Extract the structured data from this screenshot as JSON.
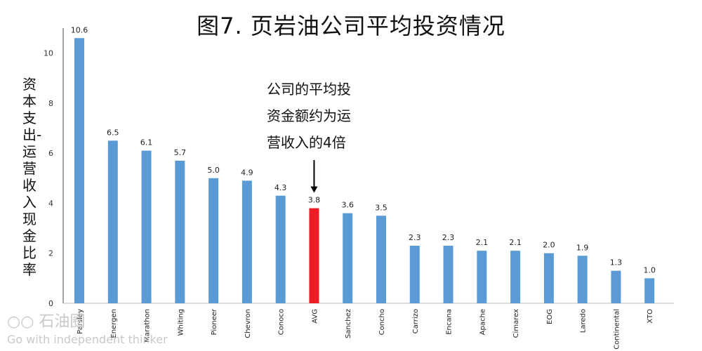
{
  "title": "图7. 页岩油公司平均投资情况",
  "watermark": {
    "logo_text": "石油圈",
    "slogan": "Go with independent thinker"
  },
  "chart_data": {
    "type": "bar",
    "title": "图7. 页岩油公司平均投资情况",
    "xlabel": "",
    "ylabel": "资本支出-运营收入现金比率",
    "ylim": [
      0,
      11
    ],
    "yticks": [
      0,
      2,
      4,
      6,
      8,
      10
    ],
    "categories": [
      "Parsley",
      "Energen",
      "Marathon",
      "Whiting",
      "Pioneer",
      "Chevron",
      "Conoco",
      "AVG",
      "Sanchez",
      "Concho",
      "Carrizo",
      "Encana",
      "Apache",
      "Cimarex",
      "EOG",
      "Laredo",
      "Continental",
      "XTO"
    ],
    "values": [
      10.6,
      6.5,
      6.1,
      5.7,
      5.0,
      4.9,
      4.3,
      3.8,
      3.6,
      3.5,
      2.3,
      2.3,
      2.1,
      2.1,
      2.0,
      1.9,
      1.3,
      1.0
    ],
    "value_labels": [
      "10.6",
      "6.5",
      "6.1",
      "5.7",
      "5.0",
      "4.9",
      "4.3",
      "3.8",
      "3.6",
      "3.5",
      "2.3",
      "2.3",
      "2.1",
      "2.1",
      "2.0",
      "1.9",
      "1.3",
      "1.0"
    ],
    "colors": {
      "default": "#5b9bd5",
      "highlight": "#ee1c25"
    },
    "highlight_category": "AVG",
    "grid": false,
    "legend": "none",
    "annotation": {
      "lines": [
        "公司的平均投",
        "资金额约为运",
        "营收入的4倍"
      ],
      "target": "AVG"
    }
  }
}
